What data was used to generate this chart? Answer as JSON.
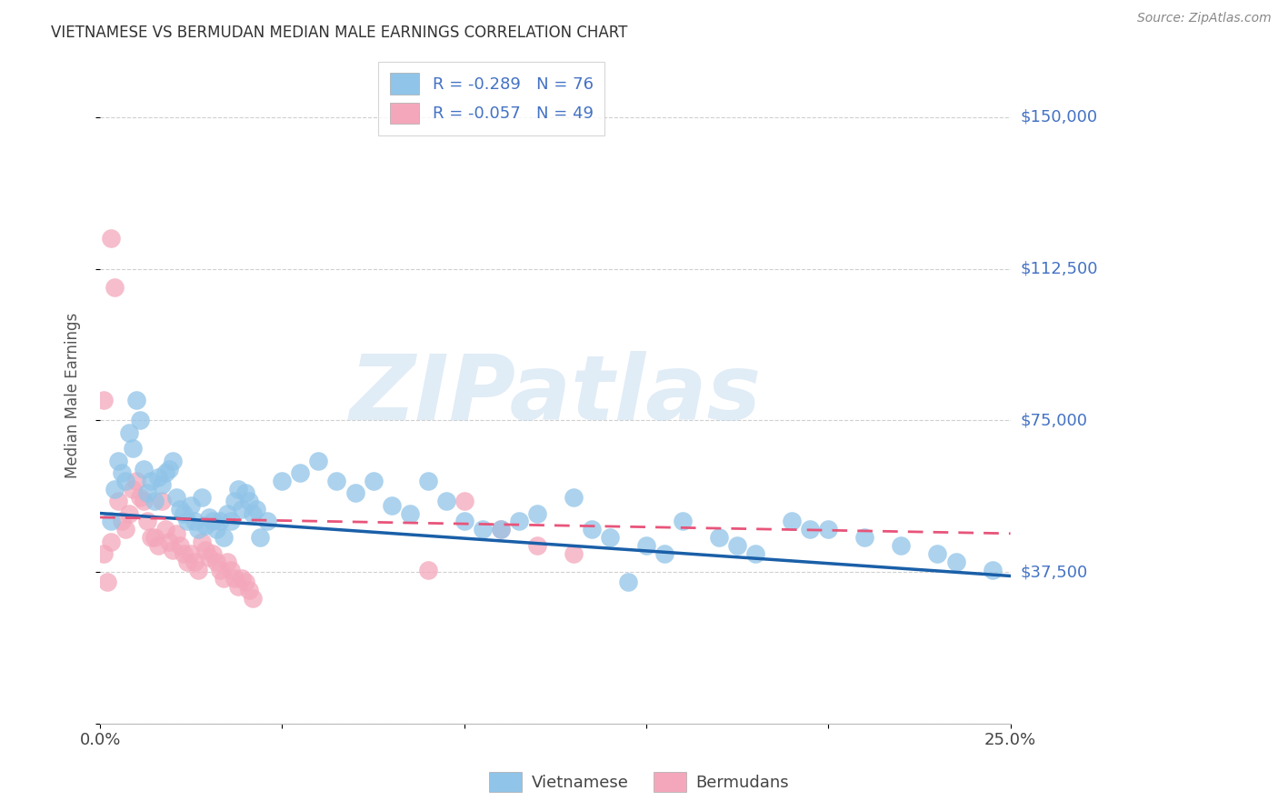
{
  "title": "VIETNAMESE VS BERMUDAN MEDIAN MALE EARNINGS CORRELATION CHART",
  "source": "Source: ZipAtlas.com",
  "ylabel": "Median Male Earnings",
  "yticks": [
    0,
    37500,
    75000,
    112500,
    150000
  ],
  "ytick_labels": [
    "",
    "$37,500",
    "$75,000",
    "$112,500",
    "$150,000"
  ],
  "xlim": [
    0.0,
    0.25
  ],
  "ylim": [
    0,
    162500
  ],
  "watermark": "ZIPatlas",
  "vietnamese_color": "#90c4e8",
  "bermudans_color": "#f4a7bb",
  "vietnamese_line_color": "#1a5fa8",
  "bermudans_line_color": "#e8547a",
  "background_color": "#ffffff",
  "grid_color": "#d0d0d0",
  "title_color": "#333333",
  "right_label_color": "#4472c4",
  "N_vietnamese": 76,
  "N_bermudans": 49,
  "R_vietnamese": -0.289,
  "R_bermudans": -0.057,
  "viet_trendline_x": [
    0.0,
    0.25
  ],
  "viet_trendline_y": [
    52000,
    36500
  ],
  "berm_trendline_x": [
    0.0,
    0.25
  ],
  "berm_trendline_y": [
    51000,
    47000
  ],
  "vietnamese_scatter_x": [
    0.003,
    0.004,
    0.005,
    0.006,
    0.007,
    0.008,
    0.009,
    0.01,
    0.011,
    0.012,
    0.013,
    0.014,
    0.015,
    0.016,
    0.017,
    0.018,
    0.019,
    0.02,
    0.021,
    0.022,
    0.023,
    0.024,
    0.025,
    0.026,
    0.027,
    0.028,
    0.029,
    0.03,
    0.031,
    0.032,
    0.033,
    0.034,
    0.035,
    0.036,
    0.037,
    0.038,
    0.039,
    0.04,
    0.041,
    0.042,
    0.043,
    0.044,
    0.046,
    0.05,
    0.055,
    0.06,
    0.065,
    0.07,
    0.075,
    0.08,
    0.085,
    0.09,
    0.095,
    0.1,
    0.11,
    0.12,
    0.13,
    0.14,
    0.15,
    0.16,
    0.17,
    0.18,
    0.19,
    0.2,
    0.21,
    0.22,
    0.23,
    0.195,
    0.175,
    0.155,
    0.145,
    0.135,
    0.115,
    0.105,
    0.235,
    0.245
  ],
  "vietnamese_scatter_y": [
    50000,
    58000,
    65000,
    62000,
    60000,
    72000,
    68000,
    80000,
    75000,
    63000,
    57000,
    60000,
    55000,
    61000,
    59000,
    62000,
    63000,
    65000,
    56000,
    53000,
    52000,
    50000,
    54000,
    50000,
    48000,
    56000,
    49000,
    51000,
    50000,
    48000,
    50000,
    46000,
    52000,
    50000,
    55000,
    58000,
    53000,
    57000,
    55000,
    52000,
    53000,
    46000,
    50000,
    60000,
    62000,
    65000,
    60000,
    57000,
    60000,
    54000,
    52000,
    60000,
    55000,
    50000,
    48000,
    52000,
    56000,
    46000,
    44000,
    50000,
    46000,
    42000,
    50000,
    48000,
    46000,
    44000,
    42000,
    48000,
    44000,
    42000,
    35000,
    48000,
    50000,
    48000,
    40000,
    38000
  ],
  "bermudans_scatter_x": [
    0.001,
    0.002,
    0.003,
    0.004,
    0.005,
    0.006,
    0.007,
    0.008,
    0.009,
    0.01,
    0.011,
    0.012,
    0.013,
    0.014,
    0.015,
    0.016,
    0.017,
    0.018,
    0.019,
    0.02,
    0.021,
    0.022,
    0.023,
    0.024,
    0.025,
    0.026,
    0.027,
    0.028,
    0.029,
    0.03,
    0.031,
    0.032,
    0.033,
    0.034,
    0.035,
    0.036,
    0.037,
    0.038,
    0.039,
    0.04,
    0.041,
    0.042,
    0.09,
    0.1,
    0.11,
    0.12,
    0.13,
    0.001,
    0.003
  ],
  "bermudans_scatter_y": [
    42000,
    35000,
    120000,
    108000,
    55000,
    50000,
    48000,
    52000,
    58000,
    60000,
    56000,
    55000,
    50000,
    46000,
    46000,
    44000,
    55000,
    48000,
    45000,
    43000,
    47000,
    44000,
    42000,
    40000,
    42000,
    40000,
    38000,
    45000,
    43000,
    41000,
    42000,
    40000,
    38000,
    36000,
    40000,
    38000,
    36000,
    34000,
    36000,
    35000,
    33000,
    31000,
    38000,
    55000,
    48000,
    44000,
    42000,
    80000,
    45000
  ]
}
